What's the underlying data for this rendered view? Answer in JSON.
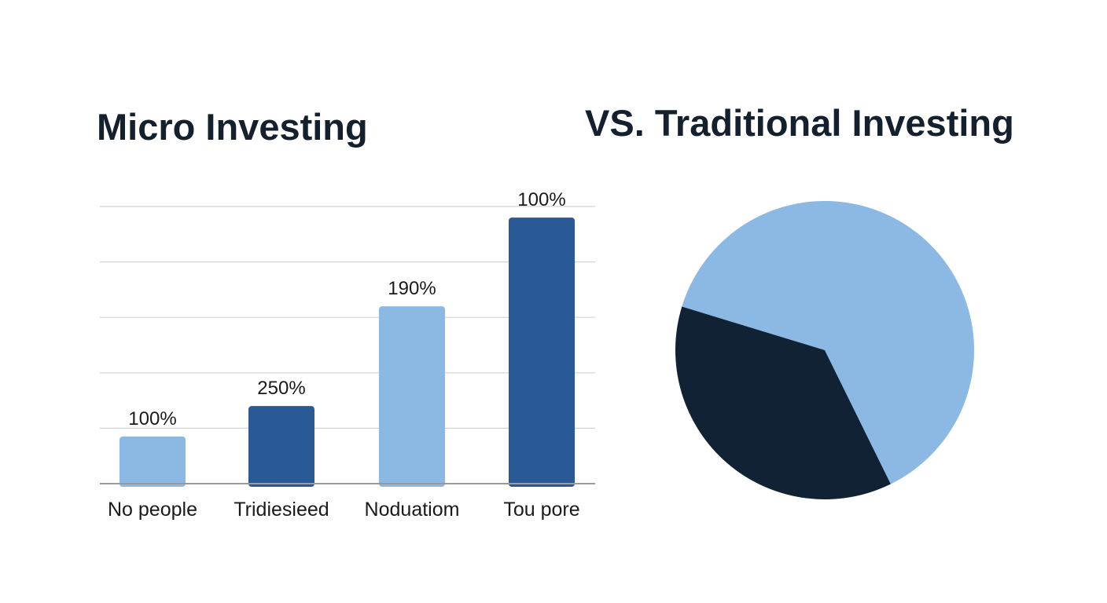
{
  "titles": {
    "left": "Micro Investing",
    "right": "VS. Traditional Investing"
  },
  "chart_data": [
    {
      "type": "bar",
      "title": "Micro Investing",
      "categories": [
        "No people",
        "Tridiesieed",
        "Noduatiom",
        "Tou pore"
      ],
      "values": [
        17,
        28,
        64,
        96
      ],
      "data_labels": [
        "100%",
        "250%",
        "190%",
        "100%"
      ],
      "bar_colors": [
        "#8cb8e4",
        "#2a5a95",
        "#8cb8e4",
        "#2a5a95"
      ],
      "ylim": [
        0,
        100
      ],
      "grid": true,
      "xlabel": "",
      "ylabel": ""
    },
    {
      "type": "pie",
      "title": "VS. Traditional Investing",
      "slices": [
        {
          "value": 63,
          "color": "#8cb8e4"
        },
        {
          "value": 37,
          "color": "#112235"
        }
      ]
    }
  ]
}
